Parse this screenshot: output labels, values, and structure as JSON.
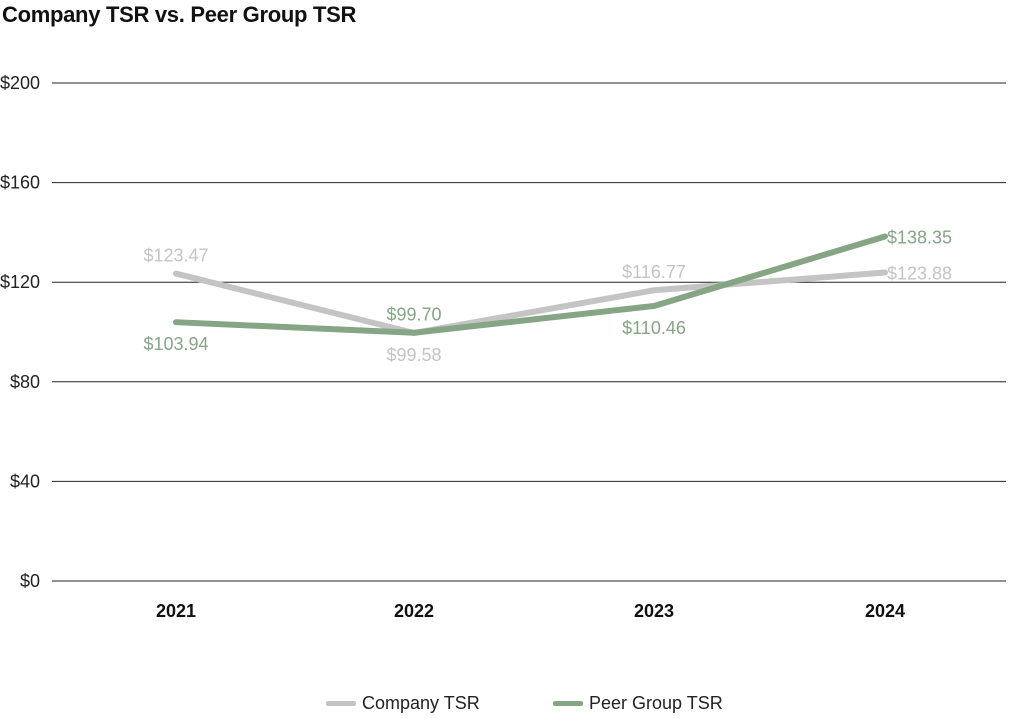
{
  "chart_data": {
    "type": "line",
    "title": "Company TSR vs. Peer Group TSR",
    "xlabel": "",
    "ylabel": "",
    "categories": [
      "2021",
      "2022",
      "2023",
      "2024"
    ],
    "ylim": [
      0,
      200
    ],
    "yticks": [
      0,
      40,
      80,
      120,
      160,
      200
    ],
    "ytick_labels": [
      "$0",
      "$40",
      "$80",
      "$120",
      "$160",
      "$200"
    ],
    "grid": true,
    "legend_position": "bottom",
    "series": [
      {
        "name": "Company TSR",
        "color": "#c4c4c4",
        "values": [
          123.47,
          99.58,
          116.77,
          123.88
        ],
        "labels": [
          "$123.47",
          "$99.58",
          "$116.77",
          "$123.88"
        ],
        "label_placement": [
          "above",
          "below",
          "above",
          "right"
        ]
      },
      {
        "name": "Peer Group TSR",
        "color": "#85a585",
        "values": [
          103.94,
          99.7,
          110.46,
          138.35
        ],
        "labels": [
          "$103.94",
          "$99.70",
          "$110.46",
          "$138.35"
        ],
        "label_placement": [
          "below",
          "above",
          "below",
          "right"
        ]
      }
    ]
  }
}
